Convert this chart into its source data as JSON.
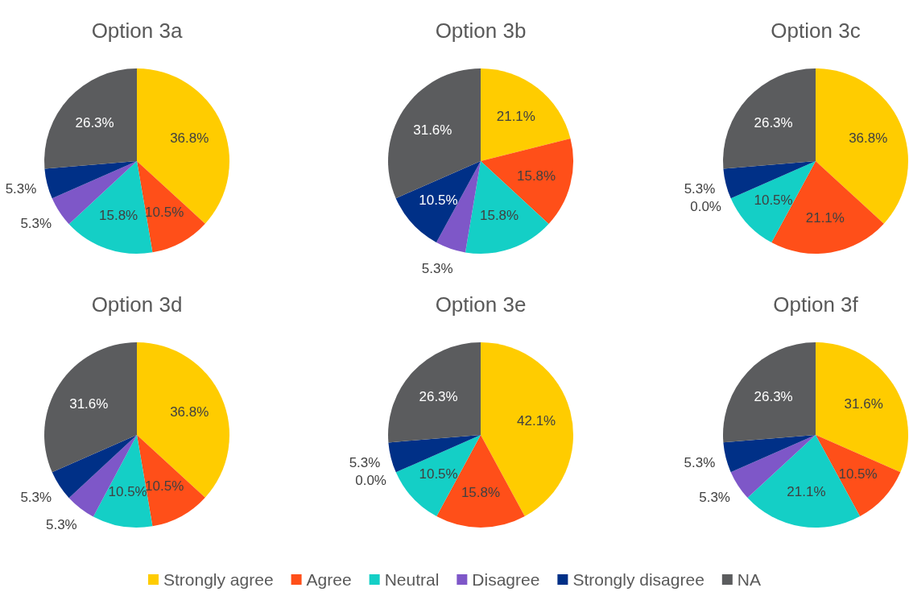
{
  "chart_data": [
    {
      "type": "pie",
      "title": "Option 3a",
      "values": [
        36.8,
        10.5,
        15.8,
        5.3,
        5.3,
        26.3
      ],
      "value_labels": [
        "36.8%",
        "10.5%",
        "15.8%",
        "5.3%",
        "5.3%",
        "26.3%"
      ],
      "colors": [
        "#ffcc00",
        "#ff4f19",
        "#14cfc6",
        "#7e57c8",
        "#003087",
        "#5b5c5e"
      ]
    },
    {
      "type": "pie",
      "title": "Option 3b",
      "values": [
        21.1,
        15.8,
        15.8,
        5.3,
        10.5,
        31.6
      ],
      "value_labels": [
        "21.1%",
        "15.8%",
        "15.8%",
        "5.3%",
        "10.5%",
        "31.6%"
      ],
      "colors": [
        "#ffcc00",
        "#ff4f19",
        "#14cfc6",
        "#7e57c8",
        "#003087",
        "#5b5c5e"
      ]
    },
    {
      "type": "pie",
      "title": "Option 3c",
      "values": [
        36.8,
        21.1,
        10.5,
        0.0,
        5.3,
        26.3
      ],
      "value_labels": [
        "36.8%",
        "21.1%",
        "10.5%",
        "0.0%",
        "5.3%",
        "26.3%"
      ],
      "colors": [
        "#ffcc00",
        "#ff4f19",
        "#14cfc6",
        "#7e57c8",
        "#003087",
        "#5b5c5e"
      ]
    },
    {
      "type": "pie",
      "title": "Option 3d",
      "values": [
        36.8,
        10.5,
        10.5,
        5.3,
        5.3,
        31.6
      ],
      "value_labels": [
        "36.8%",
        "10.5%",
        "10.5%",
        "5.3%",
        "5.3%",
        "31.6%"
      ],
      "colors": [
        "#ffcc00",
        "#ff4f19",
        "#14cfc6",
        "#7e57c8",
        "#003087",
        "#5b5c5e"
      ]
    },
    {
      "type": "pie",
      "title": "Option 3e",
      "values": [
        42.1,
        15.8,
        10.5,
        0.0,
        5.3,
        26.3
      ],
      "value_labels": [
        "42.1%",
        "15.8%",
        "10.5%",
        "0.0%",
        "5.3%",
        "26.3%"
      ],
      "colors": [
        "#ffcc00",
        "#ff4f19",
        "#14cfc6",
        "#7e57c8",
        "#003087",
        "#5b5c5e"
      ]
    },
    {
      "type": "pie",
      "title": "Option 3f",
      "categories": [
        "Strongly agree",
        "Agree",
        "Neutral",
        "Disagree",
        "Strongly disagree",
        "NA"
      ],
      "values": [
        31.6,
        10.5,
        21.1,
        5.3,
        5.3,
        26.3
      ],
      "value_labels": [
        "31.6%",
        "10.5%",
        "21.1%",
        "5.3%",
        "5.3%",
        "26.3%"
      ],
      "colors": [
        "#ffcc00",
        "#ff4f19",
        "#14cfc6",
        "#7e57c8",
        "#003087",
        "#5b5c5e"
      ],
      "legend": "bottom"
    }
  ]
}
